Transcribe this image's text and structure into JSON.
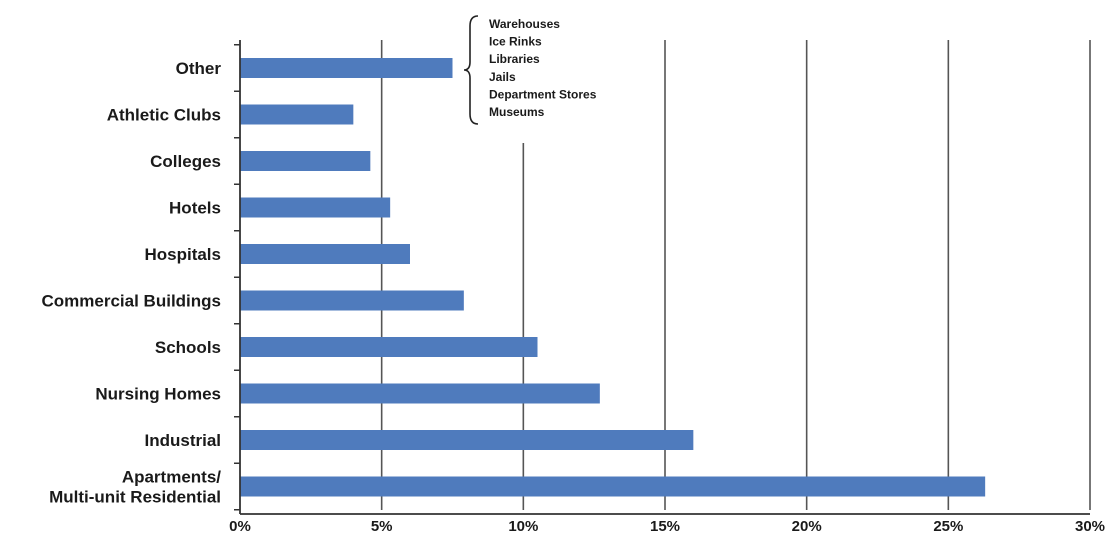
{
  "chart_data": {
    "type": "bar",
    "orientation": "horizontal",
    "categories": [
      "Other",
      "Athletic Clubs",
      "Colleges",
      "Hotels",
      "Hospitals",
      "Commercial Buildings",
      "Schools",
      "Nursing Homes",
      "Industrial",
      "Apartments/\nMulti-unit Residential"
    ],
    "values": [
      7.5,
      4.0,
      4.6,
      5.3,
      6.0,
      7.9,
      10.5,
      12.7,
      16.0,
      26.3
    ],
    "xlim": [
      0,
      30
    ],
    "xticks": [
      0,
      5,
      10,
      15,
      20,
      25,
      30
    ],
    "xtick_labels": [
      "0%",
      "5%",
      "10%",
      "15%",
      "20%",
      "25%",
      "30%"
    ],
    "grid": "vertical",
    "bar_color": "#4f7bbd",
    "title": "",
    "xlabel": "",
    "ylabel": "",
    "annotation": {
      "target": "Other",
      "items": [
        "Warehouses",
        "Ice Rinks",
        "Libraries",
        "Jails",
        "Department Stores",
        "Museums"
      ]
    }
  }
}
